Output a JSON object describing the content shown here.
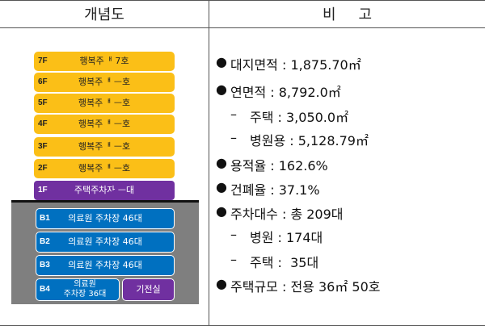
{
  "header": {
    "left": "개념도",
    "right": "비고"
  },
  "floors": [
    {
      "level": "7F",
      "label": "행복주ᅢ 7호"
    },
    {
      "level": "6F",
      "label": "행복주ᅢ ᅳ호"
    },
    {
      "level": "5F",
      "label": "행복주ᅢ ᅳ호"
    },
    {
      "level": "4F",
      "label": "행복주ᅢ ᅳ호"
    },
    {
      "level": "3F",
      "label": "행복주ᅢ ᅳ호"
    },
    {
      "level": "2F",
      "label": "행복주ᅢ ᅳ호"
    }
  ],
  "floor1": {
    "level": "1F",
    "label": "주택주차자 ᅳ대"
  },
  "basements": [
    {
      "level": "B1",
      "label": "의료원 주차장 46대"
    },
    {
      "level": "B2",
      "label": "의료원 주차장 46대"
    },
    {
      "level": "B3",
      "label": "의료원 주차장 46대"
    }
  ],
  "b4": {
    "level": "B4",
    "line1": "의료원",
    "line2": "주차장 36대"
  },
  "generator": "기전실",
  "remarks": {
    "bullet": "●",
    "dash": "–",
    "site_area": "대지면적 : 1,875.70㎡",
    "floor_area": "연면적 : 8,792.0㎡",
    "housing_area": "주택 : 3,050.0㎡",
    "hospital_area": "병원용 : 5,128.79㎡",
    "far": "용적율 : 162.6%",
    "bcr": "건폐율 : 37.1%",
    "parking": "주차대수 : 총 209대",
    "parking_hospital": "병원 : 174대",
    "parking_housing": "주택 :  35대",
    "housing_scale": "주택규모 : 전용 36㎡ 50호"
  }
}
